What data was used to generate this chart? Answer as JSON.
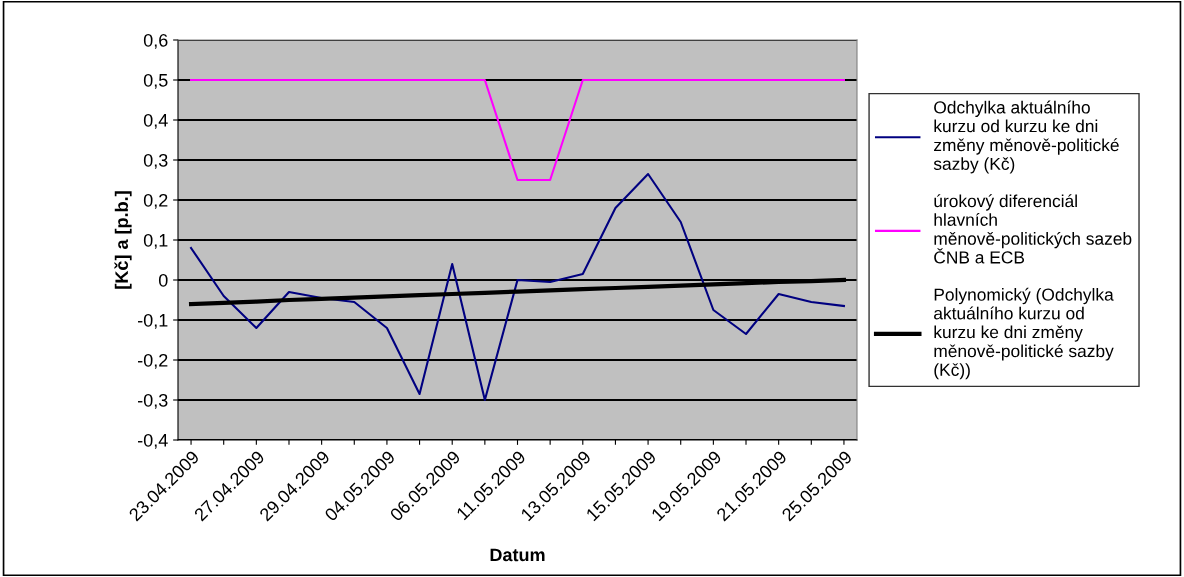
{
  "chart_data": {
    "type": "line",
    "xlabel": "Datum",
    "ylabel": "[Kč] a [p.b.]",
    "categories": [
      "23.04.2009",
      null,
      "27.04.2009",
      null,
      "29.04.2009",
      null,
      "04.05.2009",
      null,
      "06.05.2009",
      null,
      "11.05.2009",
      null,
      "13.05.2009",
      null,
      "15.05.2009",
      null,
      "19.05.2009",
      null,
      "21.05.2009",
      null,
      "25.05.2009"
    ],
    "series": [
      {
        "name": "Odchylka aktuálního kurzu od kurzu ke dni změny měnově-politické sazby (Kč)",
        "color": "#000080",
        "values": [
          0.08,
          -0.04,
          -0.12,
          -0.03,
          -0.045,
          -0.055,
          -0.12,
          -0.285,
          0.04,
          -0.3,
          0.0,
          -0.005,
          0.015,
          0.18,
          0.265,
          0.145,
          -0.075,
          -0.135,
          -0.035,
          -0.055,
          -0.065
        ]
      },
      {
        "name": "úrokový diferenciál hlavních měnově-politických sazeb ČNB a ECB",
        "color": "#ff00ff",
        "values": [
          0.5,
          0.5,
          0.5,
          0.5,
          0.5,
          0.5,
          0.5,
          0.5,
          0.5,
          0.5,
          0.25,
          0.25,
          0.5,
          0.5,
          0.5,
          0.5,
          0.5,
          0.5,
          0.5,
          0.5,
          0.5
        ]
      },
      {
        "name": "Polynomický (Odchylka aktuálního kurzu od kurzu ke dni změny měnově-politické sazby (Kč))",
        "color": "#000000",
        "values": [
          -0.06,
          -0.057,
          -0.054,
          -0.05,
          -0.047,
          -0.044,
          -0.041,
          -0.038,
          -0.035,
          -0.032,
          -0.029,
          -0.026,
          -0.023,
          -0.02,
          -0.017,
          -0.014,
          -0.011,
          -0.008,
          -0.005,
          -0.003,
          0.0
        ]
      }
    ],
    "ylim": [
      -0.4,
      0.6
    ],
    "yticks": [
      {
        "value": -0.4,
        "label": "-0,4"
      },
      {
        "value": -0.3,
        "label": "-0,3"
      },
      {
        "value": -0.2,
        "label": "-0,2"
      },
      {
        "value": -0.1,
        "label": "-0,1"
      },
      0,
      {
        "value": 0.1,
        "label": "0,1"
      },
      {
        "value": 0.2,
        "label": "0,2"
      },
      {
        "value": 0.3,
        "label": "0,3"
      },
      {
        "value": 0.4,
        "label": "0,4"
      },
      {
        "value": 0.5,
        "label": "0,5"
      },
      {
        "value": 0.6,
        "label": "0,6"
      }
    ],
    "grid": "y",
    "legend": "right",
    "marker": "none",
    "line_style": "solid"
  }
}
